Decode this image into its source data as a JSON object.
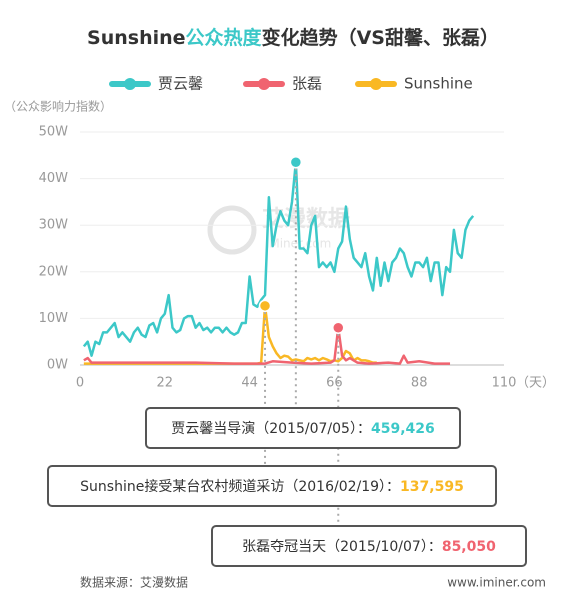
{
  "chart_data": {
    "type": "line",
    "title": [
      "Sunshine",
      "公众热度",
      "变化趋势（VS甜馨、张磊）"
    ],
    "title_highlight_color": "#3cc8c8",
    "y_label": "（公众影响力指数）",
    "x_unit": "（天）",
    "watermark": [
      "艾漫数据",
      "iMiner.com"
    ],
    "xlim": [
      0,
      110
    ],
    "xticks": [
      0,
      22,
      44,
      66,
      88,
      110
    ],
    "ylim": [
      0,
      50
    ],
    "yticks": [
      {
        "value": 0,
        "label": "0W"
      },
      {
        "value": 10,
        "label": "10W"
      },
      {
        "value": 20,
        "label": "20W"
      },
      {
        "value": 30,
        "label": "30W"
      },
      {
        "value": 40,
        "label": "40W"
      },
      {
        "value": 50,
        "label": "50W"
      }
    ],
    "grid": true,
    "series": [
      {
        "name": "贾云馨",
        "color": "#3cc8c8",
        "x": [
          1,
          2,
          3,
          4,
          5,
          6,
          7,
          8,
          9,
          10,
          11,
          12,
          13,
          14,
          15,
          16,
          17,
          18,
          19,
          20,
          21,
          22,
          23,
          24,
          25,
          26,
          27,
          28,
          29,
          30,
          31,
          32,
          33,
          34,
          35,
          36,
          37,
          38,
          39,
          40,
          41,
          42,
          43,
          44,
          45,
          46,
          47,
          48,
          49,
          50,
          51,
          52,
          53,
          54,
          55,
          56,
          57,
          58,
          59,
          60,
          61,
          62,
          63,
          64,
          65,
          66,
          67,
          68,
          69,
          70,
          71,
          72,
          73,
          74,
          75,
          76,
          77,
          78,
          79,
          80,
          81,
          82,
          83,
          84,
          85,
          86,
          87,
          88,
          89,
          90,
          91,
          92,
          93,
          94,
          95,
          96,
          97,
          98,
          99,
          100,
          101,
          102
        ],
        "values": [
          4,
          5,
          2,
          5,
          4.5,
          7,
          7,
          8,
          9,
          6,
          7,
          6,
          5,
          7,
          8,
          6.5,
          6,
          8.5,
          9,
          7,
          10,
          11,
          15,
          8,
          7,
          7.5,
          10,
          10.5,
          10.5,
          8,
          9,
          7.5,
          8,
          7,
          8,
          8,
          7,
          8,
          7,
          6.5,
          7,
          9,
          9,
          19,
          13,
          12.5,
          14,
          15,
          36,
          25.5,
          30,
          33,
          31,
          30,
          35,
          43.5,
          25,
          25,
          24,
          30,
          32,
          21,
          22,
          21,
          22,
          20,
          25,
          26.5,
          34,
          27,
          23,
          22,
          21,
          24,
          19,
          16,
          23,
          17,
          22,
          18,
          22,
          23,
          25,
          24,
          21,
          19,
          22,
          22,
          21,
          23,
          18,
          22,
          22,
          15,
          21,
          20,
          29,
          24,
          23,
          29,
          31,
          32
        ]
      },
      {
        "name": "张磊",
        "color": "#f06470",
        "x": [
          1,
          2,
          3,
          10,
          20,
          30,
          40,
          48,
          50,
          55,
          60,
          65,
          66,
          67,
          68,
          69,
          70,
          72,
          75,
          80,
          83,
          84,
          85,
          88,
          92,
          96
        ],
        "values": [
          1,
          1.5,
          0.5,
          0.5,
          0.5,
          0.5,
          0.3,
          0.3,
          0.8,
          0.5,
          0.3,
          0.5,
          1,
          8,
          2,
          1,
          1.5,
          0.5,
          0.3,
          0.5,
          0.3,
          2,
          0.5,
          0.8,
          0.3,
          0.3
        ]
      },
      {
        "name": "Sunshine",
        "color": "#f9b824",
        "x": [
          1,
          10,
          20,
          30,
          40,
          46,
          47,
          48,
          49,
          50,
          51,
          52,
          53,
          54,
          55,
          56,
          57,
          58,
          59,
          60,
          61,
          62,
          63,
          64,
          65,
          66,
          67,
          68,
          69,
          70,
          71,
          72,
          73,
          74,
          75,
          76,
          77
        ],
        "values": [
          0.3,
          0.3,
          0.3,
          0.3,
          0.3,
          0.3,
          0.5,
          12.7,
          6,
          4,
          2.5,
          1.5,
          2,
          1.8,
          1,
          1.2,
          1,
          0.8,
          1.5,
          1.2,
          1.5,
          1,
          1.5,
          1.2,
          0.8,
          1,
          0.8,
          1.5,
          3,
          2.5,
          1,
          1.5,
          1,
          1,
          0.8,
          0.5,
          0.5
        ]
      }
    ],
    "annotations": [
      {
        "series_name": "贾云馨",
        "text": "贾云馨当导演（2015/07/05）：",
        "value_label": "459,426"
      },
      {
        "series_name": "Sunshine",
        "text": "Sunshine接受某台农村频道采访（2016/02/19）：",
        "value_label": "137,595"
      },
      {
        "series_name": "张磊",
        "text": "张磊夺冠当天（2015/10/07）：",
        "value_label": "85,050"
      }
    ],
    "source": "数据来源：艾漫数据",
    "website": "www.iminer.com"
  }
}
